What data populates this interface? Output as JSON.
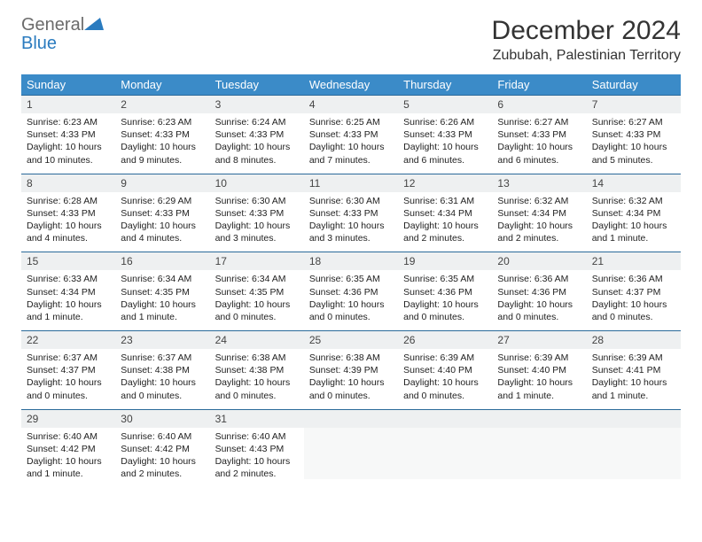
{
  "brand": {
    "general": "General",
    "blue": "Blue"
  },
  "title": "December 2024",
  "location": "Zububah, Palestinian Territory",
  "colors": {
    "header_bg": "#3b8bc8",
    "header_text": "#ffffff",
    "daynum_bg": "#eef0f1",
    "row_divider": "#2a6a9a",
    "logo_gray": "#6b6b6b",
    "logo_blue": "#2a7bbf"
  },
  "weekdays": [
    "Sunday",
    "Monday",
    "Tuesday",
    "Wednesday",
    "Thursday",
    "Friday",
    "Saturday"
  ],
  "start_weekday": 0,
  "days": [
    {
      "n": 1,
      "sunrise": "6:23 AM",
      "sunset": "4:33 PM",
      "daylight": "10 hours and 10 minutes."
    },
    {
      "n": 2,
      "sunrise": "6:23 AM",
      "sunset": "4:33 PM",
      "daylight": "10 hours and 9 minutes."
    },
    {
      "n": 3,
      "sunrise": "6:24 AM",
      "sunset": "4:33 PM",
      "daylight": "10 hours and 8 minutes."
    },
    {
      "n": 4,
      "sunrise": "6:25 AM",
      "sunset": "4:33 PM",
      "daylight": "10 hours and 7 minutes."
    },
    {
      "n": 5,
      "sunrise": "6:26 AM",
      "sunset": "4:33 PM",
      "daylight": "10 hours and 6 minutes."
    },
    {
      "n": 6,
      "sunrise": "6:27 AM",
      "sunset": "4:33 PM",
      "daylight": "10 hours and 6 minutes."
    },
    {
      "n": 7,
      "sunrise": "6:27 AM",
      "sunset": "4:33 PM",
      "daylight": "10 hours and 5 minutes."
    },
    {
      "n": 8,
      "sunrise": "6:28 AM",
      "sunset": "4:33 PM",
      "daylight": "10 hours and 4 minutes."
    },
    {
      "n": 9,
      "sunrise": "6:29 AM",
      "sunset": "4:33 PM",
      "daylight": "10 hours and 4 minutes."
    },
    {
      "n": 10,
      "sunrise": "6:30 AM",
      "sunset": "4:33 PM",
      "daylight": "10 hours and 3 minutes."
    },
    {
      "n": 11,
      "sunrise": "6:30 AM",
      "sunset": "4:33 PM",
      "daylight": "10 hours and 3 minutes."
    },
    {
      "n": 12,
      "sunrise": "6:31 AM",
      "sunset": "4:34 PM",
      "daylight": "10 hours and 2 minutes."
    },
    {
      "n": 13,
      "sunrise": "6:32 AM",
      "sunset": "4:34 PM",
      "daylight": "10 hours and 2 minutes."
    },
    {
      "n": 14,
      "sunrise": "6:32 AM",
      "sunset": "4:34 PM",
      "daylight": "10 hours and 1 minute."
    },
    {
      "n": 15,
      "sunrise": "6:33 AM",
      "sunset": "4:34 PM",
      "daylight": "10 hours and 1 minute."
    },
    {
      "n": 16,
      "sunrise": "6:34 AM",
      "sunset": "4:35 PM",
      "daylight": "10 hours and 1 minute."
    },
    {
      "n": 17,
      "sunrise": "6:34 AM",
      "sunset": "4:35 PM",
      "daylight": "10 hours and 0 minutes."
    },
    {
      "n": 18,
      "sunrise": "6:35 AM",
      "sunset": "4:36 PM",
      "daylight": "10 hours and 0 minutes."
    },
    {
      "n": 19,
      "sunrise": "6:35 AM",
      "sunset": "4:36 PM",
      "daylight": "10 hours and 0 minutes."
    },
    {
      "n": 20,
      "sunrise": "6:36 AM",
      "sunset": "4:36 PM",
      "daylight": "10 hours and 0 minutes."
    },
    {
      "n": 21,
      "sunrise": "6:36 AM",
      "sunset": "4:37 PM",
      "daylight": "10 hours and 0 minutes."
    },
    {
      "n": 22,
      "sunrise": "6:37 AM",
      "sunset": "4:37 PM",
      "daylight": "10 hours and 0 minutes."
    },
    {
      "n": 23,
      "sunrise": "6:37 AM",
      "sunset": "4:38 PM",
      "daylight": "10 hours and 0 minutes."
    },
    {
      "n": 24,
      "sunrise": "6:38 AM",
      "sunset": "4:38 PM",
      "daylight": "10 hours and 0 minutes."
    },
    {
      "n": 25,
      "sunrise": "6:38 AM",
      "sunset": "4:39 PM",
      "daylight": "10 hours and 0 minutes."
    },
    {
      "n": 26,
      "sunrise": "6:39 AM",
      "sunset": "4:40 PM",
      "daylight": "10 hours and 0 minutes."
    },
    {
      "n": 27,
      "sunrise": "6:39 AM",
      "sunset": "4:40 PM",
      "daylight": "10 hours and 1 minute."
    },
    {
      "n": 28,
      "sunrise": "6:39 AM",
      "sunset": "4:41 PM",
      "daylight": "10 hours and 1 minute."
    },
    {
      "n": 29,
      "sunrise": "6:40 AM",
      "sunset": "4:42 PM",
      "daylight": "10 hours and 1 minute."
    },
    {
      "n": 30,
      "sunrise": "6:40 AM",
      "sunset": "4:42 PM",
      "daylight": "10 hours and 2 minutes."
    },
    {
      "n": 31,
      "sunrise": "6:40 AM",
      "sunset": "4:43 PM",
      "daylight": "10 hours and 2 minutes."
    }
  ],
  "labels": {
    "sunrise": "Sunrise:",
    "sunset": "Sunset:",
    "daylight": "Daylight:"
  }
}
